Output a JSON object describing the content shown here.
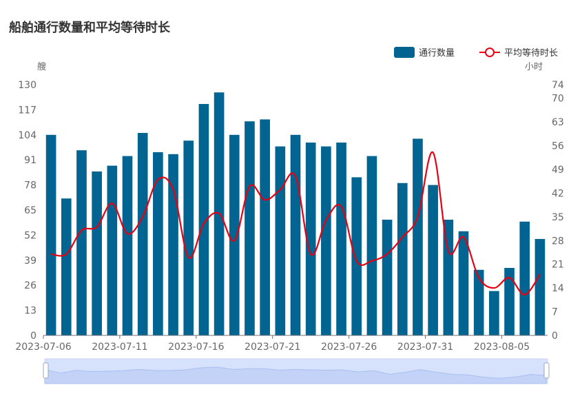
{
  "title": "船舶通行数量和平均等待时长",
  "legend": {
    "bar_label": "通行数量",
    "line_label": "平均等待时长"
  },
  "chart_data": {
    "type": "bar",
    "title": "船舶通行数量和平均等待时长",
    "categories": [
      "2023-07-06",
      "2023-07-07",
      "2023-07-08",
      "2023-07-09",
      "2023-07-10",
      "2023-07-11",
      "2023-07-12",
      "2023-07-13",
      "2023-07-14",
      "2023-07-15",
      "2023-07-16",
      "2023-07-17",
      "2023-07-18",
      "2023-07-19",
      "2023-07-20",
      "2023-07-21",
      "2023-07-22",
      "2023-07-23",
      "2023-07-24",
      "2023-07-25",
      "2023-07-26",
      "2023-07-27",
      "2023-07-28",
      "2023-07-29",
      "2023-07-30",
      "2023-07-31",
      "2023-08-01",
      "2023-08-02",
      "2023-08-03",
      "2023-08-04",
      "2023-08-05",
      "2023-08-06",
      "2023-08-07"
    ],
    "x_tick_labels": [
      "2023-07-06",
      "2023-07-11",
      "2023-07-16",
      "2023-07-21",
      "2023-07-26",
      "2023-07-31",
      "2023-08-05"
    ],
    "series": [
      {
        "name": "通行数量",
        "type": "bar",
        "axis": "left",
        "color": "#016491",
        "values": [
          104,
          71,
          96,
          85,
          88,
          93,
          105,
          95,
          94,
          101,
          120,
          126,
          104,
          111,
          112,
          98,
          104,
          100,
          98,
          100,
          82,
          93,
          60,
          79,
          102,
          78,
          60,
          54,
          34,
          23,
          35,
          59,
          50
        ]
      },
      {
        "name": "平均等待时长",
        "type": "line",
        "axis": "right",
        "color": "#e60012",
        "values": [
          24,
          24,
          31,
          32,
          39,
          30,
          35,
          46,
          43,
          23,
          33,
          36,
          28,
          44,
          40,
          43,
          47,
          24,
          34,
          38,
          22,
          22,
          24,
          29,
          35,
          54,
          25,
          29,
          17,
          14,
          17,
          12,
          18
        ]
      }
    ],
    "y_left": {
      "name": "艘",
      "min": 0,
      "max": 130,
      "ticks": [
        0,
        13,
        26,
        39,
        52,
        65,
        78,
        91,
        104,
        117,
        130
      ]
    },
    "y_right": {
      "name": "小时",
      "min": 0,
      "max": 74,
      "ticks": [
        0,
        7,
        14,
        21,
        28,
        35,
        42,
        49,
        56,
        63,
        70,
        74
      ]
    },
    "grid": false,
    "legend_position": "top-right"
  }
}
